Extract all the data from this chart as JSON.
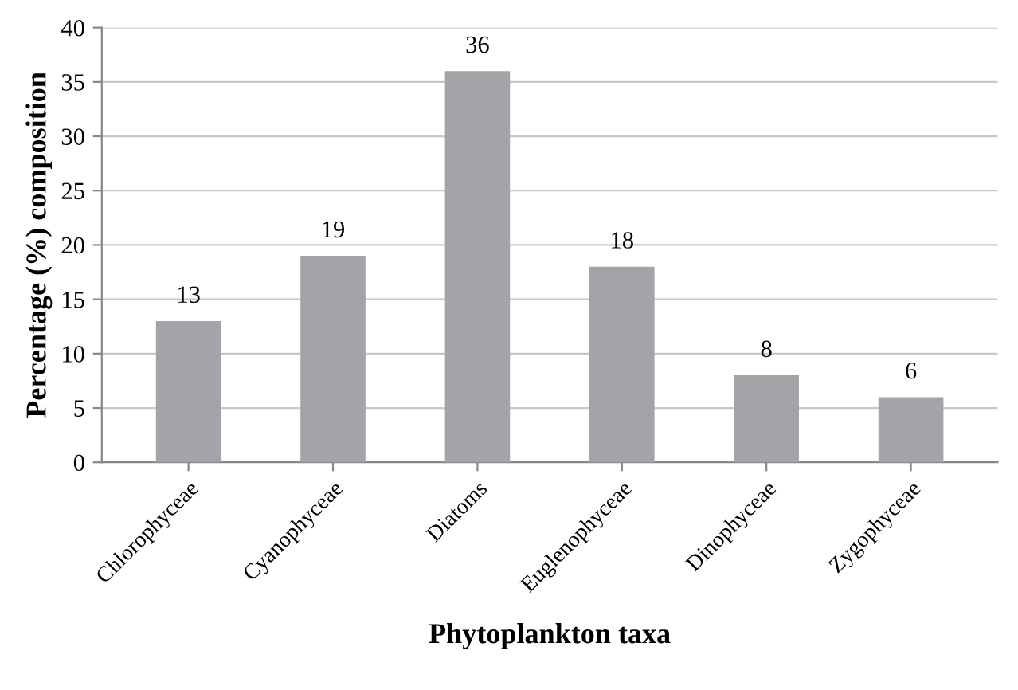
{
  "chart_data": {
    "type": "bar",
    "xlabel": "Phytoplankton taxa",
    "ylabel": "Percentage (%) composition",
    "categories": [
      "Chlorophyceae",
      "Cyanophyceae",
      "Diatoms",
      "Euglenophyceae",
      "Dinophyceae",
      "Zygophyceae"
    ],
    "values": [
      13,
      19,
      36,
      18,
      8,
      6
    ],
    "color": "#a4a4a8",
    "ylim": [
      0,
      40
    ],
    "yticks": [
      0,
      5,
      10,
      15,
      20,
      25,
      30,
      35,
      40
    ],
    "grid": "y",
    "data_labels": true
  }
}
